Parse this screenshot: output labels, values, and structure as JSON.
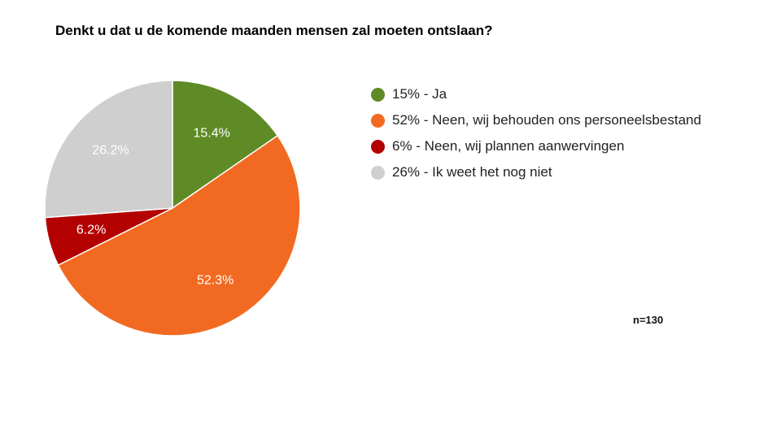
{
  "chart_data": {
    "type": "pie",
    "title": "Denkt u dat u de komende maanden mensen zal moeten ontslaan?",
    "slices": [
      {
        "label": "15% - Ja",
        "value": 15.4,
        "display": "15.4%",
        "color": "#5f8b26"
      },
      {
        "label": "52% - Neen, wij behouden ons personeelsbestand",
        "value": 52.3,
        "display": "52.3%",
        "color": "#f26a21"
      },
      {
        "label": "6% - Neen, wij plannen aanwervingen",
        "value": 6.2,
        "display": "6.2%",
        "color": "#b30000"
      },
      {
        "label": "26% - Ik weet het nog niet",
        "value": 26.2,
        "display": "26.2%",
        "color": "#cfcfcf"
      }
    ],
    "legend_position": "right",
    "note": "n=130"
  }
}
